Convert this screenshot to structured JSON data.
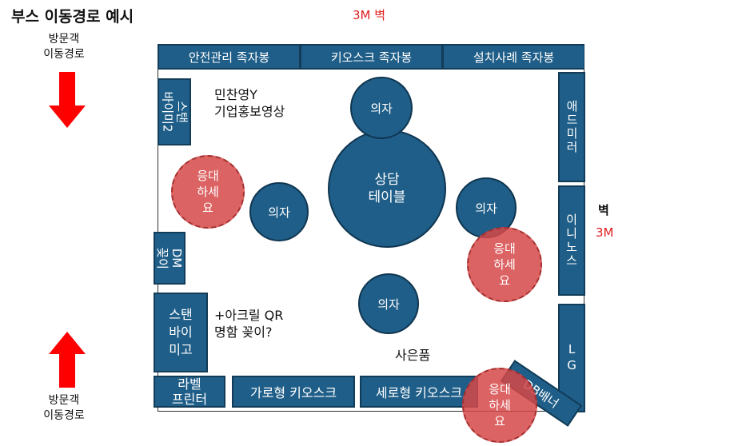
{
  "title": "부스 이동경로 예시",
  "wall_top": "3M 벽",
  "wall_right": {
    "word": "벽",
    "size": "3M"
  },
  "visitor_top": [
    "방문객",
    "이동경로"
  ],
  "visitor_bottom": [
    "방문객",
    "이동경로"
  ],
  "top_boxes": [
    "안전관리 족자봉",
    "키오스크 족자봉",
    "설치사례 족자봉"
  ],
  "left_boxes": {
    "stand2": "스탠\n바이미2",
    "dm": "DM\n꽂이"
  },
  "stand_mirror": "스탠\n바이\n미고",
  "right_boxes": {
    "admirror": "애드\n미러",
    "innilux": "이니\n노스",
    "lg": "LG"
  },
  "bottom_boxes": [
    "라벨\n프린터",
    "가로형 키오스크",
    "세로형 키오스크"
  ],
  "db_banner": "DB배너",
  "chairs": [
    "의자",
    "의자",
    "의자",
    "의자"
  ],
  "table": "상담\n테이블",
  "hosts": [
    "응대\n하세\n요",
    "응대\n하세\n요",
    "응대\n하세\n요"
  ],
  "video_note": "민찬영Y\n기업홍보영상",
  "qr_note": "+아크릴 QR\n명함 꽂이?",
  "gift": "사은품",
  "colors": {
    "booth_blue": "#1f5e88",
    "host_red": "#d64848",
    "arrow_red": "#ff0000"
  }
}
